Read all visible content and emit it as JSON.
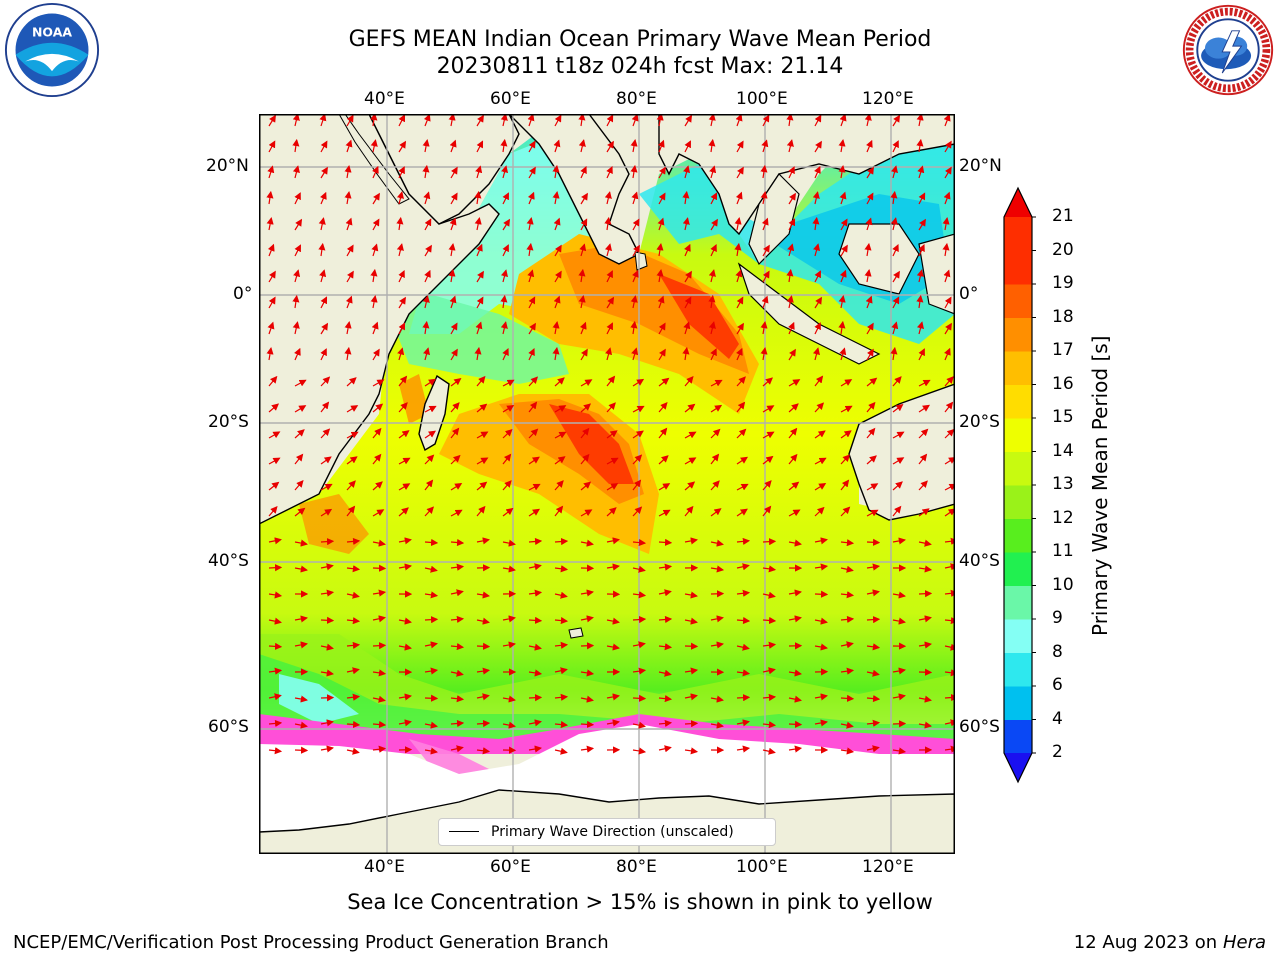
{
  "title_line1": "GEFS MEAN Indian Ocean Primary Wave Mean Period",
  "title_line2": "20230811 t18z 024h fcst   Max: 21.14",
  "axes": {
    "top_lon_labels": [
      "40°E",
      "60°E",
      "80°E",
      "100°E",
      "120°E"
    ],
    "bottom_lon_labels": [
      "40°E",
      "60°E",
      "80°E",
      "100°E",
      "120°E"
    ],
    "left_lat_labels": [
      "20°N",
      "0°",
      "20°S",
      "40°S",
      "60°S"
    ],
    "right_lat_labels": [
      "20°N",
      "0°",
      "20°S",
      "40°S",
      "60°S"
    ]
  },
  "legend": {
    "label": "Primary Wave Direction (unscaled)"
  },
  "colorbar": {
    "title": "Primary Wave Mean Period [s]",
    "tick_labels": [
      "2",
      "4",
      "6",
      "8",
      "9",
      "10",
      "11",
      "12",
      "13",
      "14",
      "15",
      "16",
      "17",
      "18",
      "19",
      "20",
      "21"
    ],
    "colors": [
      "#0a48f5",
      "#00c0ef",
      "#2ee8ee",
      "#84fff4",
      "#6af7a8",
      "#21f050",
      "#58ee1e",
      "#9af219",
      "#c8fa10",
      "#eeff00",
      "#ffdd00",
      "#ffbe00",
      "#ff8f00",
      "#ff6000",
      "#fe2e00",
      "#fe2e00"
    ],
    "under_color": "#1a10f0",
    "over_color": "#ef0000"
  },
  "caption": "Sea Ice Concentration > 15% is shown in pink to yellow",
  "footer_left": "NCEP/EMC/Verification Post Processing Product Generation Branch",
  "footer_right_date": "12 Aug 2023 on",
  "footer_right_host": "Hera",
  "logos": {
    "left": "noaa-logo",
    "right": "nws-logo"
  }
}
